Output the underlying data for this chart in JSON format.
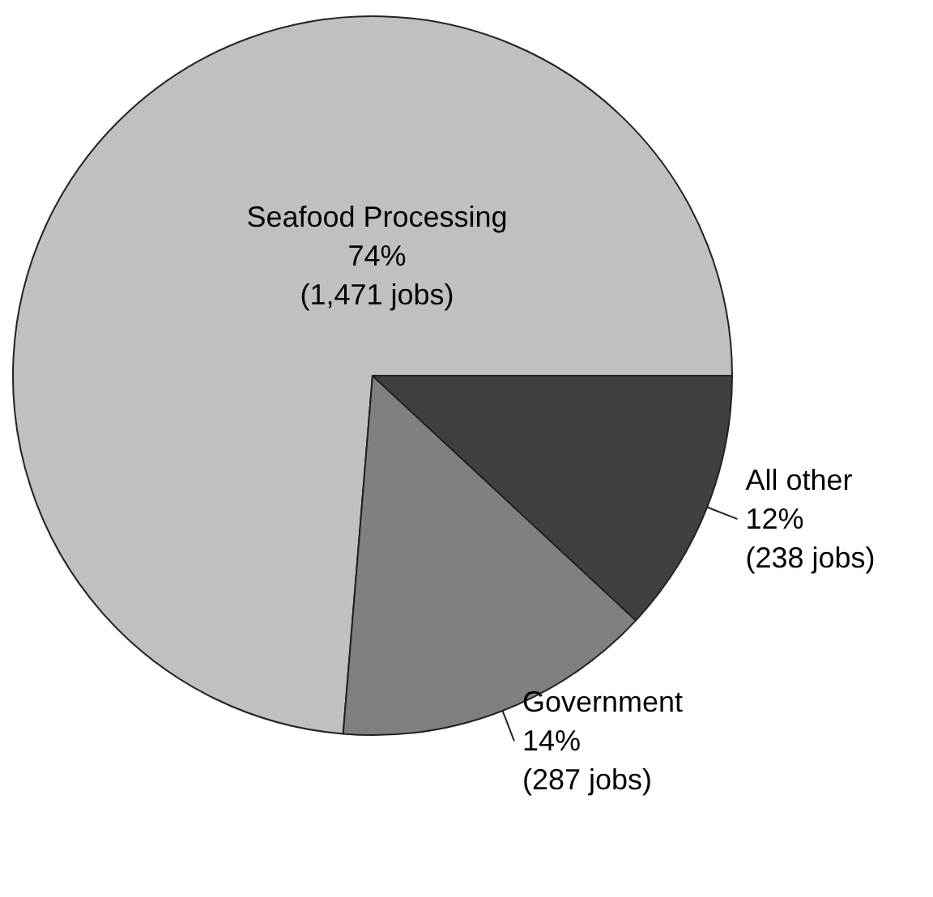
{
  "chart_data": {
    "type": "pie",
    "categories": [
      "Seafood Processing",
      "Government",
      "All other"
    ],
    "values": [
      1471,
      287,
      238
    ],
    "colors": [
      "#c0c0c0",
      "#808080",
      "#404040"
    ],
    "value_labels": [
      "74%\n(1,471 jobs)",
      "14%\n(287 jobs)",
      "12%\n(238 jobs)"
    ]
  }
}
